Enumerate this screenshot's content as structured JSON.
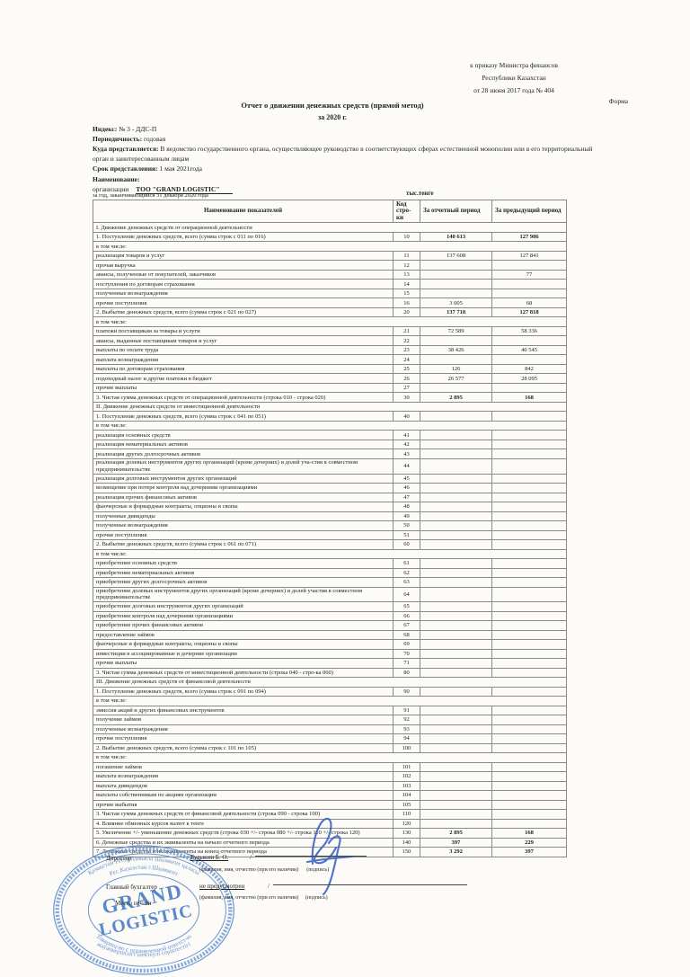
{
  "approval": {
    "line1": "к приказу Министра финансов",
    "line2": "Республики Казахстан",
    "line3": "от 28 июня 2017 года № 404",
    "form_label": "Форма"
  },
  "header": {
    "title": "Отчет о движении денежных средств (прямой метод)",
    "subtitle": "за  2020 г.",
    "index_label": "Индекс:",
    "index_value": "№ 3 - ДДС-П",
    "periodicity_label": "Периодичность:",
    "periodicity_value": "годовая",
    "submit_to_label": "Куда представляется:",
    "submit_to_value": "В ведомство государственного органа, осуществляющее руководство в соответствующих сферах естественной монополии или в его территориальный орган и заинтересованным лицам",
    "deadline_label": "Срок представления:",
    "deadline_value": "1 мая 2021года",
    "name_label": "Наименование:",
    "org_label": "организации",
    "org_value": "ТОО \"GRAND LOGISTIC\"",
    "period_note": "за год, заканчивающийся 31 декабря 2020 года",
    "units": "тыс.тенге"
  },
  "table": {
    "headers": {
      "name": "Наименование показателей",
      "code": "Код стро-ки",
      "current": "За отчетный период",
      "previous": "За предыдущий период"
    },
    "rows": [
      {
        "type": "section",
        "label": "I. Движение денежных средств от операционной деятельности"
      },
      {
        "type": "item",
        "label": "1. Поступление денежных средств, всего (сумма строк с 011 по 016)",
        "code": "10",
        "current": "140 613",
        "previous": "127 986",
        "bold": true
      },
      {
        "type": "section",
        "label": "в том числе:"
      },
      {
        "type": "item",
        "label": "реализация товаров и услуг",
        "code": "11",
        "current": "137 608",
        "previous": "127 841"
      },
      {
        "type": "item",
        "label": "прочая выручка",
        "code": "12",
        "current": "",
        "previous": ""
      },
      {
        "type": "item",
        "label": "авансы, полученные от покупателей, заказчиков",
        "code": "13",
        "current": "",
        "previous": "77"
      },
      {
        "type": "item",
        "label": "поступления по договорам страхования",
        "code": "14",
        "current": "",
        "previous": ""
      },
      {
        "type": "item",
        "label": "полученные вознаграждения",
        "code": "15",
        "current": "",
        "previous": ""
      },
      {
        "type": "item",
        "label": "прочие поступления",
        "code": "16",
        "current": "3 005",
        "previous": "68"
      },
      {
        "type": "item",
        "label": "2. Выбытие денежных средств, всего (сумма строк с 021 по 027)",
        "code": "20",
        "current": "137 718",
        "previous": "127 818",
        "bold": true
      },
      {
        "type": "section",
        "label": "в том числе:"
      },
      {
        "type": "item",
        "label": "платежи поставщикам за товары и услуги",
        "code": "21",
        "current": "72 589",
        "previous": "58 336"
      },
      {
        "type": "item",
        "label": "авансы, выданные поставщикам товаров и услуг",
        "code": "22",
        "current": "",
        "previous": ""
      },
      {
        "type": "item",
        "label": "выплаты по оплате труда",
        "code": "23",
        "current": "38 426",
        "previous": "40 545"
      },
      {
        "type": "item",
        "label": "выплата вознаграждения",
        "code": "24",
        "current": "",
        "previous": ""
      },
      {
        "type": "item",
        "label": "выплаты по договорам страхования",
        "code": "25",
        "current": "126",
        "previous": "842"
      },
      {
        "type": "item",
        "label": "подоходный налог и другие платежи в бюджет",
        "code": "26",
        "current": "26 577",
        "previous": "28 095"
      },
      {
        "type": "item",
        "label": "прочие выплаты",
        "code": "27",
        "current": "",
        "previous": ""
      },
      {
        "type": "item",
        "label": "3. Чистая сумма денежных средств от операционной деятельности (строка 010 - строка 020)",
        "code": "30",
        "current": "2 895",
        "previous": "168",
        "bold": true
      },
      {
        "type": "section",
        "label": "II. Движение денежных средств от инвестиционной деятельности"
      },
      {
        "type": "item",
        "label": "1. Поступление денежных средств, всего (сумма строк с 041 по 051)",
        "code": "40",
        "current": "",
        "previous": ""
      },
      {
        "type": "section",
        "label": "в том числе:"
      },
      {
        "type": "item",
        "label": "реализация основных средств",
        "code": "41",
        "current": "",
        "previous": ""
      },
      {
        "type": "item",
        "label": "реализация нематериальных активов",
        "code": "42",
        "current": "",
        "previous": ""
      },
      {
        "type": "item",
        "label": "реализация других долгосрочных активов",
        "code": "43",
        "current": "",
        "previous": ""
      },
      {
        "type": "item",
        "label": "реализация долевых инструментов других организаций (кроме дочерних) и долей уча-стия в совместном предпринимательстве",
        "code": "44",
        "current": "",
        "previous": ""
      },
      {
        "type": "item",
        "label": "реализация долговых инструментов других организаций",
        "code": "45",
        "current": "",
        "previous": ""
      },
      {
        "type": "item",
        "label": "возмещение при потере контроля над дочерними организациями",
        "code": "46",
        "current": "",
        "previous": ""
      },
      {
        "type": "item",
        "label": "реализация прочих финансовых активов",
        "code": "47",
        "current": "",
        "previous": ""
      },
      {
        "type": "item",
        "label": "фьючерсные и форвардные контракты, опционы и свопы",
        "code": "48",
        "current": "",
        "previous": ""
      },
      {
        "type": "item",
        "label": "полученные дивиденды",
        "code": "49",
        "current": "",
        "previous": ""
      },
      {
        "type": "item",
        "label": "полученные вознаграждения",
        "code": "50",
        "current": "",
        "previous": ""
      },
      {
        "type": "item",
        "label": "прочие поступления",
        "code": "51",
        "current": "",
        "previous": ""
      },
      {
        "type": "item",
        "label": "2. Выбытие денежных средств, всего (сумма строк с 061 по 071)",
        "code": "60",
        "current": "",
        "previous": ""
      },
      {
        "type": "section",
        "label": "в том числе:"
      },
      {
        "type": "item",
        "label": "приобретение основных средств",
        "code": "61",
        "current": "",
        "previous": ""
      },
      {
        "type": "item",
        "label": "приобретение нематериальных активов",
        "code": "62",
        "current": "",
        "previous": ""
      },
      {
        "type": "item",
        "label": "приобретение других долгосрочных активов",
        "code": "63",
        "current": "",
        "previous": ""
      },
      {
        "type": "item",
        "label": "приобретение долевых инструментов других организаций (кроме дочерних) и долей участия в совместном предпринимательстве",
        "code": "64",
        "current": "",
        "previous": ""
      },
      {
        "type": "item",
        "label": "приобретение долговых инструментов других организаций",
        "code": "65",
        "current": "",
        "previous": ""
      },
      {
        "type": "item",
        "label": "приобретение контроля над дочерними организациями",
        "code": "66",
        "current": "",
        "previous": ""
      },
      {
        "type": "item",
        "label": "приобретение прочих финансовых активов",
        "code": "67",
        "current": "",
        "previous": ""
      },
      {
        "type": "item",
        "label": "предоставление займов",
        "code": "68",
        "current": "",
        "previous": ""
      },
      {
        "type": "item",
        "label": "фьючерсные и форвардные контракты, опционы и свопы",
        "code": "69",
        "current": "",
        "previous": ""
      },
      {
        "type": "item",
        "label": "инвестиции в ассоциированные и дочерние организации",
        "code": "70",
        "current": "",
        "previous": ""
      },
      {
        "type": "item",
        "label": "прочие выплаты",
        "code": "71",
        "current": "",
        "previous": ""
      },
      {
        "type": "item",
        "label": "3. Чистая сумма денежных средств от инвестиционной деятельности (строка 040 - стро-ка 060)",
        "code": "80",
        "current": "",
        "previous": ""
      },
      {
        "type": "section",
        "label": "III. Движение денежных средств от финансовой деятельности"
      },
      {
        "type": "item",
        "label": "1. Поступление денежных средств, всего (сумма строк с 091 по 094)",
        "code": "90",
        "current": "",
        "previous": ""
      },
      {
        "type": "section",
        "label": "в том числе:"
      },
      {
        "type": "item",
        "label": "эмиссия акций и других финансовых инструментов",
        "code": "91",
        "current": "",
        "previous": ""
      },
      {
        "type": "item",
        "label": "получение займов",
        "code": "92",
        "current": "",
        "previous": ""
      },
      {
        "type": "item",
        "label": "полученные вознаграждения",
        "code": "93",
        "current": "",
        "previous": ""
      },
      {
        "type": "item",
        "label": "прочие поступления",
        "code": "94",
        "current": "",
        "previous": ""
      },
      {
        "type": "item",
        "label": "2. Выбытие денежных средств, всего (сумма строк с 101 по 105)",
        "code": "100",
        "current": "",
        "previous": ""
      },
      {
        "type": "section",
        "label": "в том числе:"
      },
      {
        "type": "item",
        "label": "погашение займов",
        "code": "101",
        "current": "",
        "previous": ""
      },
      {
        "type": "item",
        "label": "выплата вознаграждения",
        "code": "102",
        "current": "",
        "previous": ""
      },
      {
        "type": "item",
        "label": "выплата дивидендов",
        "code": "103",
        "current": "",
        "previous": ""
      },
      {
        "type": "item",
        "label": "выплаты собственникам по акциям организации",
        "code": "104",
        "current": "",
        "previous": ""
      },
      {
        "type": "item",
        "label": "прочие выбытия",
        "code": "105",
        "current": "",
        "previous": ""
      },
      {
        "type": "item",
        "label": "3. Чистая сумма денежных средств от финансовой деятельности (строка 090 - строка 100)",
        "code": "110",
        "current": "",
        "previous": ""
      },
      {
        "type": "item",
        "label": "4. Влияние обменных курсов валют к тенге",
        "code": "120",
        "current": "",
        "previous": ""
      },
      {
        "type": "item",
        "label": "5. Увеличение +/- уменьшение денежных средств (строка 030 +/- строка 080 +/- строка 110 +/- строка 120)",
        "code": "130",
        "current": "2 895",
        "previous": "168",
        "bold": true
      },
      {
        "type": "item",
        "label": "6. Денежные средства и их эквиваленты на начало отчетного периода",
        "code": "140",
        "current": "397",
        "previous": "229",
        "bold": true
      },
      {
        "type": "item",
        "label": "7. Денежные средства и их эквиваленты на конец отчетного периода",
        "code": "150",
        "current": "3 292",
        "previous": "397",
        "bold": true
      }
    ]
  },
  "signatures": {
    "director_label": "Директор",
    "director_name": "Будыкин Б. О.",
    "slash": "/",
    "caption1": "(фамилия, имя, отчество (при его наличии)      (подпись)",
    "chief_label": "Главный бухгалтер",
    "chief_value": "не предусмотрен",
    "caption2": "(фамилия, имя, отчество (при его наличии)     (подпись)",
    "seal_label": "Место печати"
  },
  "stamp": {
    "color": "#4d80c6",
    "ring_outer_top": "Қазақстан Республикасы Шымкент қаласы",
    "ring_outer_bottom": "жауапкершілігі шектеулі серіктестігі",
    "ring_inner_top": "Рес.Казахстан г.Шымкент",
    "ring_inner_bottom": "Товарищ-во с ограниченной ответст-ю",
    "center_top": "GRAND",
    "center_bottom": "LOGISTIC"
  }
}
